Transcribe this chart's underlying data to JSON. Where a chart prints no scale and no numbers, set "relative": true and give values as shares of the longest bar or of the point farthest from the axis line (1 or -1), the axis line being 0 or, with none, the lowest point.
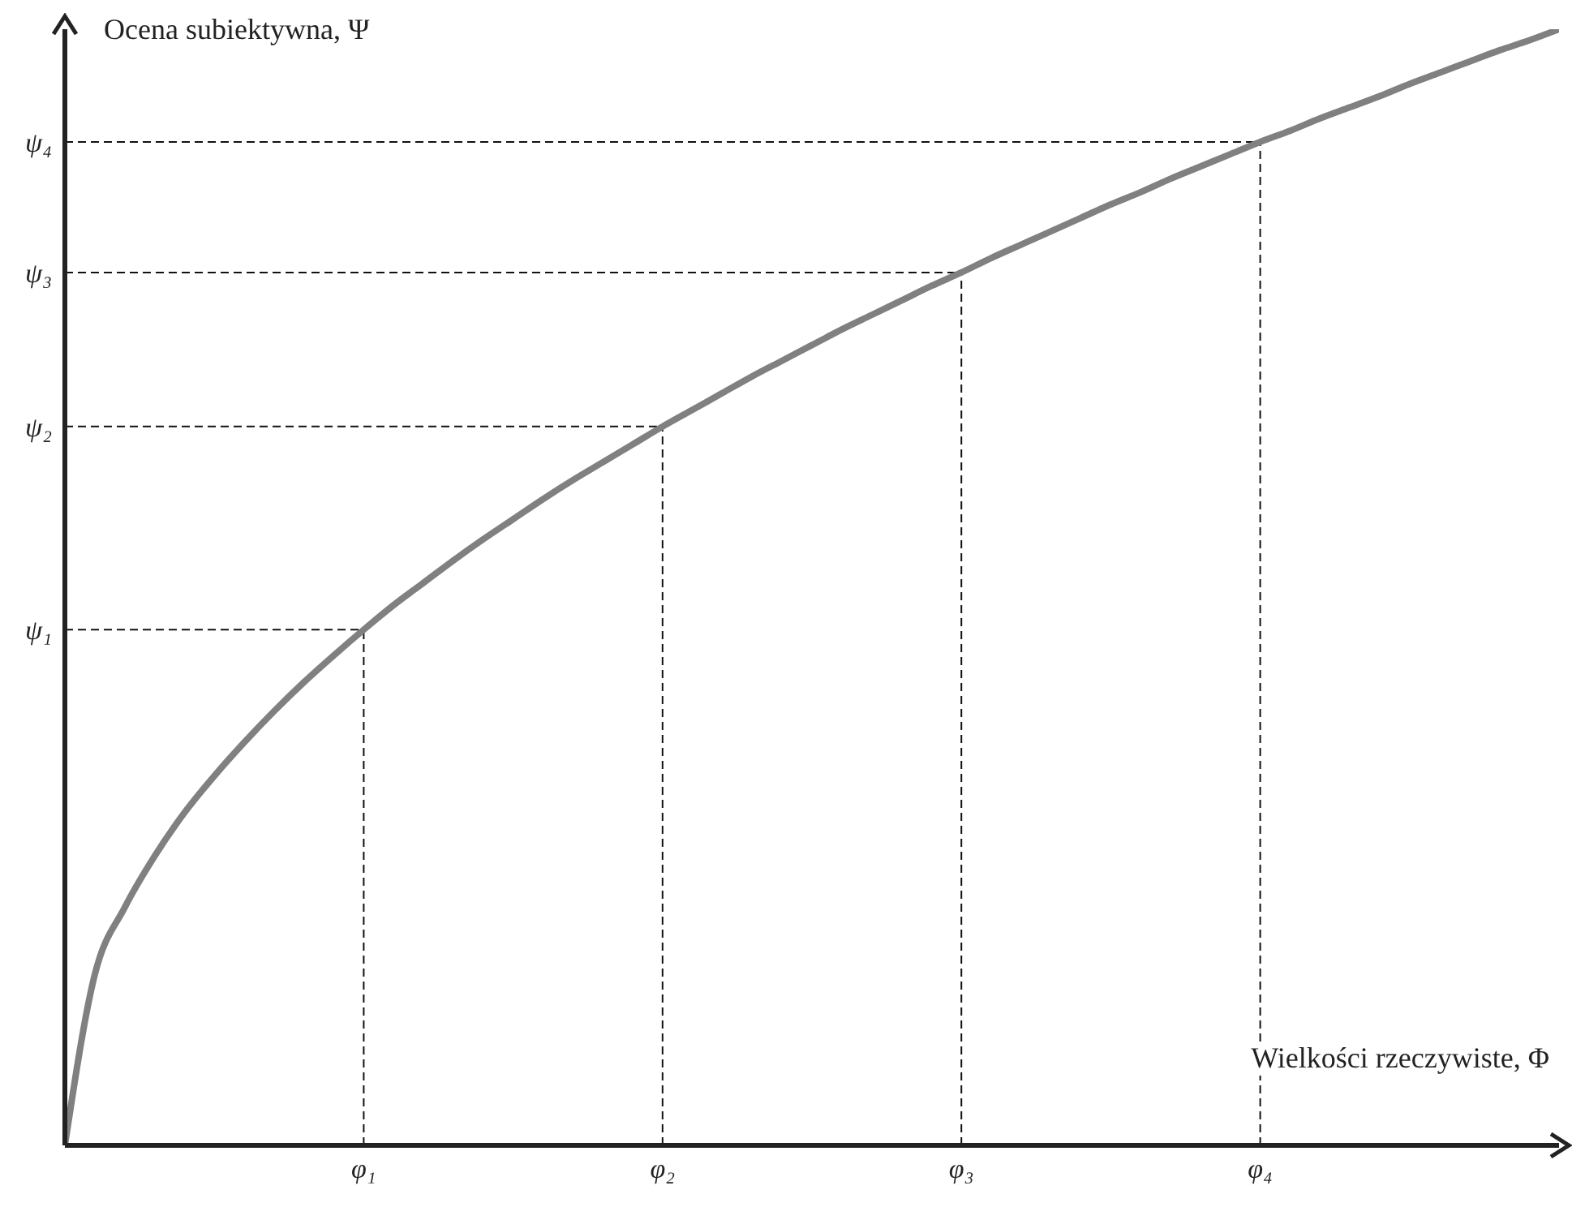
{
  "chart_data": {
    "type": "line",
    "relative": true,
    "xlabel": "Wielkości rzeczywiste, Φ",
    "ylabel": "Ocena subiektywna, Ψ",
    "categories": [
      null,
      null,
      null,
      null,
      null,
      null,
      null,
      null,
      null,
      null,
      "φ₁",
      null,
      null,
      null,
      null,
      null,
      null,
      null,
      null,
      null,
      "φ₂",
      null,
      null,
      null,
      null,
      null,
      null,
      null,
      null,
      null,
      "φ₃",
      null,
      null,
      null,
      null,
      null,
      null,
      null,
      null,
      null,
      "φ₄",
      null,
      null,
      null,
      null,
      null,
      null,
      null,
      null,
      null,
      null
    ],
    "series": [
      {
        "color": "#808080",
        "values": [
          0,
          0.153,
          0.213,
          0.259,
          0.298,
          0.331,
          0.361,
          0.389,
          0.415,
          0.439,
          0.462,
          0.484,
          0.504,
          0.524,
          0.543,
          0.561,
          0.579,
          0.596,
          0.612,
          0.628,
          0.644,
          0.659,
          0.674,
          0.689,
          0.703,
          0.717,
          0.731,
          0.744,
          0.757,
          0.77,
          0.782,
          0.795,
          0.807,
          0.819,
          0.831,
          0.843,
          0.854,
          0.866,
          0.877,
          0.888,
          0.899,
          0.909,
          0.92,
          0.93,
          0.94,
          0.951,
          0.961,
          0.971,
          0.981,
          0.99,
          1
        ]
      }
    ],
    "ref_lines": [
      {
        "axis": "x",
        "value": "φ₁",
        "color": "#111111",
        "line_style": "dashed"
      },
      {
        "axis": "x",
        "value": "φ₂",
        "color": "#111111",
        "line_style": "dashed"
      },
      {
        "axis": "x",
        "value": "φ₃",
        "color": "#111111",
        "line_style": "dashed"
      },
      {
        "axis": "x",
        "value": "φ₄",
        "color": "#111111",
        "line_style": "dashed"
      },
      {
        "axis": "y",
        "value": 0.462,
        "label": "ψ₁",
        "color": "#111111",
        "line_style": "dashed"
      },
      {
        "axis": "y",
        "value": 0.644,
        "label": "ψ₂",
        "color": "#111111",
        "line_style": "dashed"
      },
      {
        "axis": "y",
        "value": 0.782,
        "label": "ψ₃",
        "color": "#111111",
        "line_style": "dashed"
      },
      {
        "axis": "y",
        "value": 0.899,
        "label": "ψ₄",
        "color": "#111111",
        "line_style": "dashed"
      }
    ],
    "tick_labels": "x",
    "marker": "none",
    "line_style": "solid"
  }
}
